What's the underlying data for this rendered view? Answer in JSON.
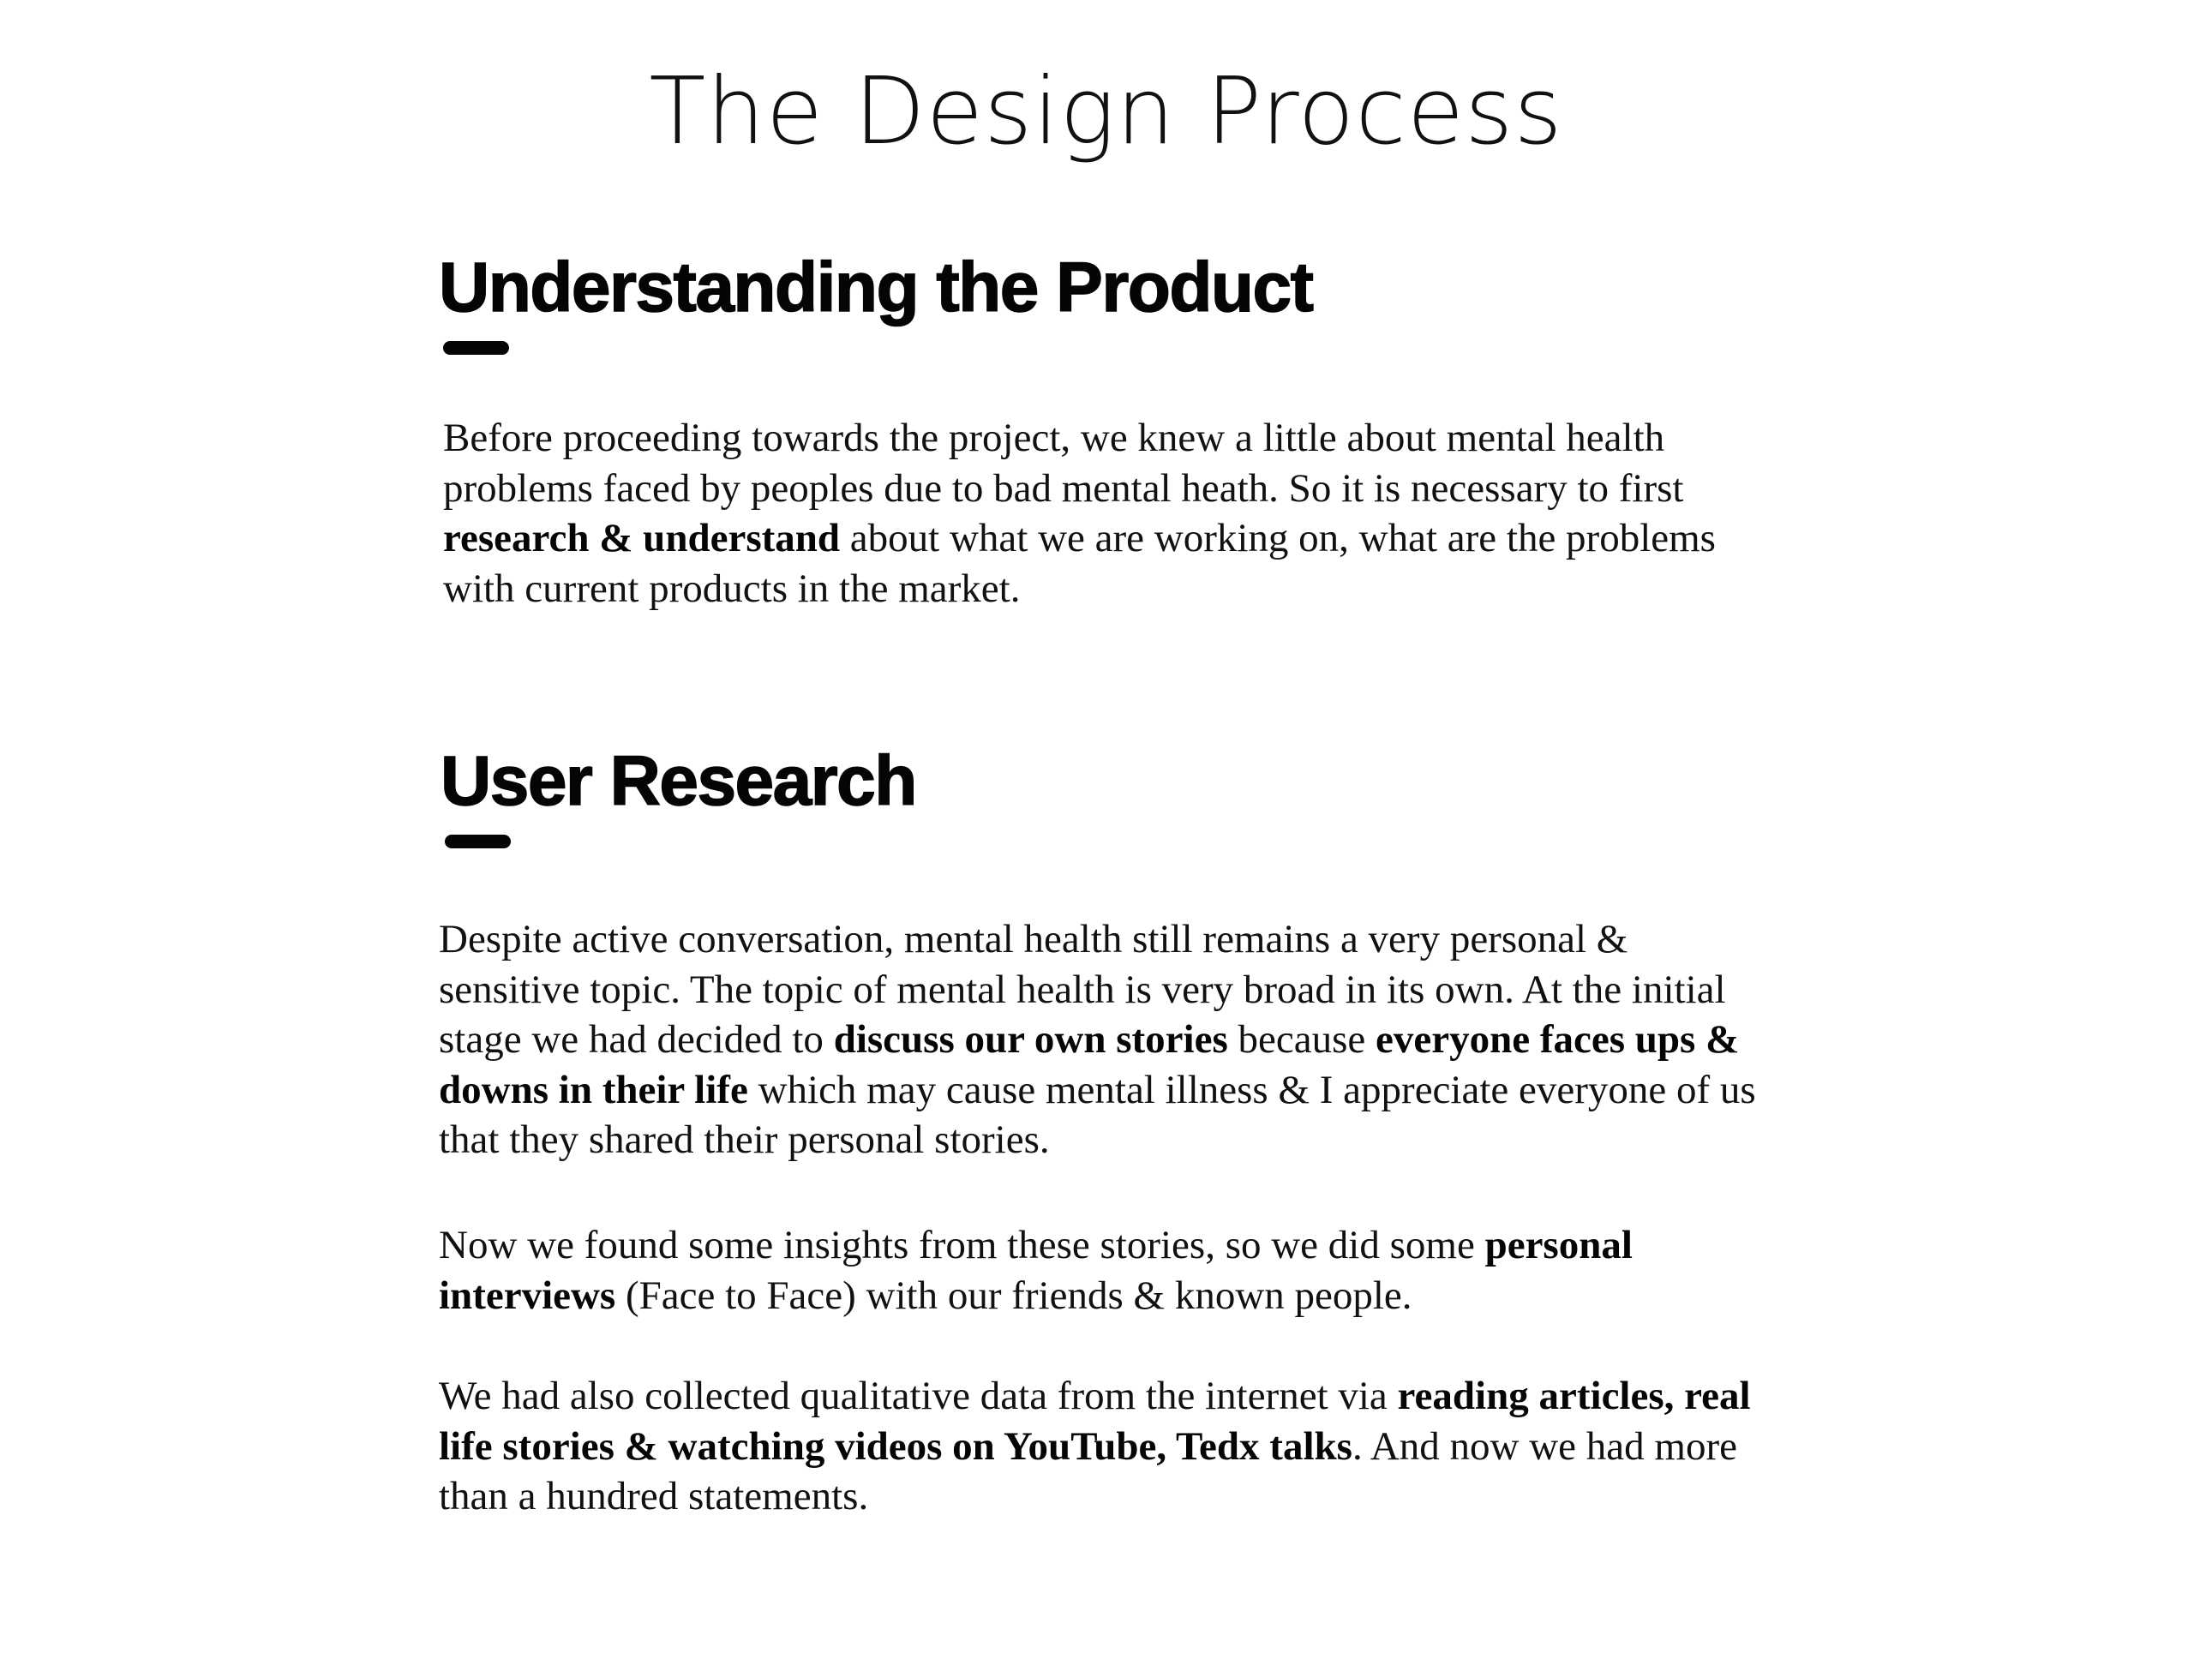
{
  "page": {
    "title": "The Design Process"
  },
  "sections": [
    {
      "heading": "Understanding the Product",
      "paragraphs": [
        {
          "lines": [
            [
              {
                "t": "Before proceeding towards the project, we knew a little about mental health"
              }
            ],
            [
              {
                "t": "problems faced by peoples due to bad mental heath. So it is necessary to first"
              }
            ],
            [
              {
                "t": "research & understand",
                "b": true
              },
              {
                "t": " about what we are working on, what are the problems"
              }
            ],
            [
              {
                "t": "with current products in the market."
              }
            ]
          ]
        }
      ]
    },
    {
      "heading": "User Research",
      "paragraphs": [
        {
          "lines": [
            [
              {
                "t": "Despite active conversation, mental health still remains a very personal &"
              }
            ],
            [
              {
                "t": "sensitive topic. The topic of mental health is very broad in its own. At the initial"
              }
            ],
            [
              {
                "t": "stage we had decided to "
              },
              {
                "t": "discuss our own stories",
                "b": true
              },
              {
                "t": " because "
              },
              {
                "t": "everyone faces ups &",
                "b": true
              }
            ],
            [
              {
                "t": "downs in their life",
                "b": true
              },
              {
                "t": " which may cause mental illness & I appreciate everyone of us"
              }
            ],
            [
              {
                "t": "that they shared their personal stories."
              }
            ]
          ]
        },
        {
          "lines": [
            [
              {
                "t": "Now we found some insights from these stories, so we did some "
              },
              {
                "t": "personal",
                "b": true
              }
            ],
            [
              {
                "t": "interviews",
                "b": true
              },
              {
                "t": " (Face to Face) with our friends & known people."
              }
            ]
          ]
        },
        {
          "lines": [
            [
              {
                "t": "We had also collected qualitative data from the internet via "
              },
              {
                "t": "reading articles, real",
                "b": true
              }
            ],
            [
              {
                "t": "life stories & watching videos on YouTube, Tedx talks",
                "b": true
              },
              {
                "t": ". And now we had more"
              }
            ],
            [
              {
                "t": "than a hundred statements."
              }
            ]
          ]
        }
      ]
    }
  ]
}
